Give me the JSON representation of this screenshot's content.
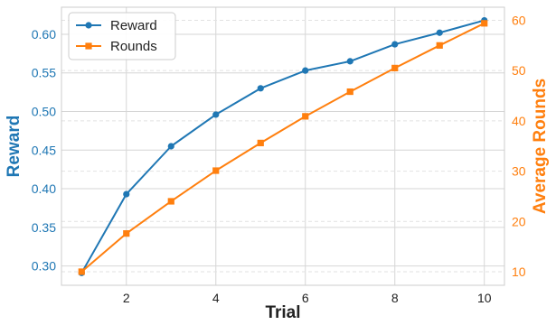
{
  "chart_data": {
    "type": "line",
    "xlabel": "Trial",
    "ylabel_left": "Reward",
    "ylabel_right": "Average Rounds",
    "x": [
      1,
      2,
      3,
      4,
      5,
      6,
      7,
      8,
      9,
      10
    ],
    "x_ticks": [
      2,
      4,
      6,
      8,
      10
    ],
    "xlim": [
      0.55,
      10.45
    ],
    "ylim_left": [
      0.275,
      0.635
    ],
    "ylim_right": [
      7.3,
      62.6
    ],
    "y_ticks_left": [
      "0.30",
      "0.35",
      "0.40",
      "0.45",
      "0.50",
      "0.55",
      "0.60"
    ],
    "y_ticks_right": [
      "10",
      "20",
      "30",
      "40",
      "50",
      "60"
    ],
    "grid": true,
    "legend_position": "top-left",
    "colors": {
      "left": "#1f77b4",
      "right": "#ff7f0e",
      "grid": "#d6d6d6",
      "frame": "#cccccc"
    },
    "series": [
      {
        "name": "Reward",
        "axis": "left",
        "marker": "circle",
        "color": "#1f77b4",
        "values": [
          0.291,
          0.393,
          0.455,
          0.496,
          0.53,
          0.553,
          0.565,
          0.587,
          0.602,
          0.618
        ]
      },
      {
        "name": "Rounds",
        "axis": "right",
        "marker": "square",
        "color": "#ff7f0e",
        "values": [
          10.0,
          17.6,
          24.0,
          30.1,
          35.6,
          40.9,
          45.8,
          50.5,
          55.0,
          59.4
        ]
      }
    ]
  }
}
